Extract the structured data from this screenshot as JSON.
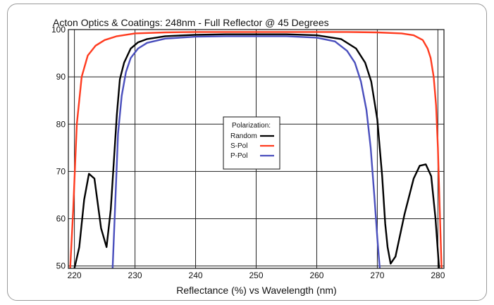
{
  "chart_data": {
    "type": "line",
    "title": "Acton Optics & Coatings:  248nm - Full Reflector @ 45 Degrees",
    "xlabel": "Reflectance (%)  vs  Wavelength (nm)",
    "ylabel": "",
    "xlim": [
      219,
      281
    ],
    "ylim": [
      49.5,
      100
    ],
    "xticks": [
      220,
      230,
      240,
      250,
      260,
      270,
      280
    ],
    "yticks": [
      50,
      60,
      70,
      80,
      90,
      100
    ],
    "grid": true,
    "legend": {
      "title": "Polarization:",
      "placement": "center",
      "entries": [
        "Random",
        "S-Pol",
        "P-Pol"
      ]
    },
    "series": [
      {
        "name": "Random",
        "color": "#000000",
        "x": [
          220.0,
          220.8,
          221.6,
          222.4,
          223.3,
          224.4,
          225.3,
          226.0,
          227.0,
          227.5,
          228.2,
          229.3,
          230.5,
          232.0,
          235.0,
          240.0,
          245.0,
          250.0,
          255.0,
          260.0,
          264.0,
          266.5,
          268.0,
          269.0,
          270.0,
          270.8,
          271.3,
          271.7,
          272.2,
          273.0,
          274.5,
          276.0,
          277.0,
          278.0,
          278.9,
          279.6,
          280.2
        ],
        "y": [
          49.5,
          54.0,
          64.0,
          69.5,
          68.5,
          58.0,
          54.0,
          62.0,
          82.0,
          89.5,
          93.0,
          96.0,
          97.3,
          98.0,
          98.6,
          98.9,
          99.0,
          99.0,
          99.0,
          98.8,
          98.0,
          96.0,
          93.0,
          89.0,
          81.0,
          69.0,
          59.0,
          54.0,
          50.5,
          52.0,
          61.0,
          68.5,
          71.2,
          71.5,
          69.0,
          60.0,
          49.5
        ]
      },
      {
        "name": "S-Pol",
        "color": "#ff3b1f",
        "x": [
          219.3,
          219.8,
          220.4,
          221.2,
          222.2,
          223.5,
          225.0,
          227.0,
          230.0,
          235.0,
          240.0,
          250.0,
          260.0,
          265.0,
          270.0,
          274.0,
          276.0,
          277.5,
          278.3,
          278.8,
          279.3,
          279.7,
          280.0,
          280.3,
          280.6
        ],
        "y": [
          49.5,
          62.0,
          80.0,
          90.0,
          94.5,
          96.6,
          97.8,
          98.6,
          99.2,
          99.4,
          99.5,
          99.5,
          99.5,
          99.5,
          99.4,
          99.2,
          98.8,
          97.8,
          96.0,
          94.0,
          90.0,
          84.0,
          75.0,
          62.0,
          49.5
        ]
      },
      {
        "name": "P-Pol",
        "color": "#4a4fbd",
        "x": [
          226.3,
          226.7,
          227.2,
          227.8,
          228.5,
          229.3,
          230.5,
          232.0,
          235.0,
          240.0,
          245.0,
          250.0,
          255.0,
          260.0,
          263.0,
          265.0,
          266.3,
          267.3,
          268.2,
          268.9,
          269.5,
          270.0,
          270.4
        ],
        "y": [
          49.5,
          62.0,
          78.0,
          86.0,
          91.0,
          94.0,
          96.0,
          97.2,
          98.1,
          98.5,
          98.6,
          98.6,
          98.6,
          98.3,
          97.5,
          95.5,
          93.0,
          89.0,
          83.0,
          75.0,
          65.0,
          56.0,
          49.5
        ]
      }
    ]
  }
}
